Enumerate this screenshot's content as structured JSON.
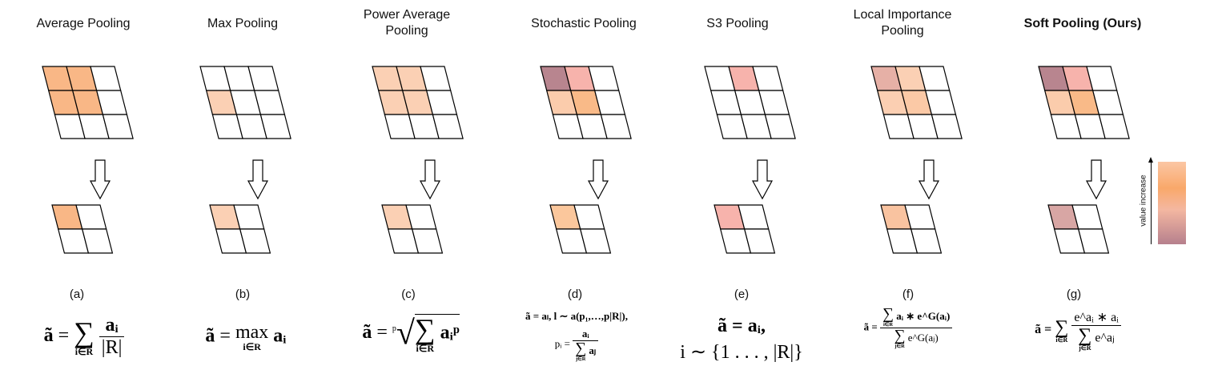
{
  "methods": [
    {
      "title": "Average Pooling",
      "label": "(a)",
      "bold": false,
      "cells": [
        "#f9b786",
        "#f9b786",
        null,
        "#f9b786",
        "#f9b786",
        null,
        null,
        null,
        null
      ],
      "out": "#f9b786"
    },
    {
      "title": "Max Pooling",
      "label": "(b)",
      "bold": false,
      "cells": [
        null,
        null,
        null,
        "#fbd0b4",
        null,
        null,
        null,
        null,
        null
      ],
      "out": "#fbd0b4"
    },
    {
      "title": "Power Average Pooling",
      "label": "(c)",
      "bold": false,
      "cells": [
        "#fbd0b4",
        "#fbd0b4",
        null,
        "#fbd0b4",
        "#fbd0b4",
        null,
        null,
        null,
        null
      ],
      "out": "#fbd0b4"
    },
    {
      "title": "Stochastic Pooling",
      "label": "(d)",
      "bold": false,
      "cells": [
        "#b8858f",
        "#f7b3ac",
        null,
        "#fbccac",
        "#f9ba88",
        null,
        null,
        null,
        null
      ],
      "out": "#fbc79c"
    },
    {
      "title": "S3 Pooling",
      "label": "(e)",
      "bold": false,
      "cells": [
        null,
        "#f7b3ac",
        null,
        null,
        null,
        null,
        null,
        null,
        null
      ],
      "out": "#f7b3ac"
    },
    {
      "title": "Local Importance Pooling",
      "label": "(f)",
      "bold": false,
      "cells": [
        "#e6b0a6",
        "#fbd0b4",
        null,
        "#fbcfb2",
        "#fbc9a6",
        null,
        null,
        null,
        null
      ],
      "out": "#f9c3a0"
    },
    {
      "title": "Soft Pooling (Ours)",
      "label": "(g)",
      "bold": true,
      "cells": [
        "#b8858f",
        "#f7b3ac",
        null,
        "#fbccac",
        "#f9ba88",
        null,
        null,
        null,
        null
      ],
      "out": "#d8a6a4"
    }
  ],
  "formulas": {
    "a": {
      "lhs": "ã",
      "eq": "=",
      "sum": "∑",
      "sub": "i∈R",
      "num": "aᵢ",
      "den": "|R|"
    },
    "b": {
      "lhs": "ã",
      "eq": "=",
      "op": "max",
      "sub": "i∈R",
      "rhs": "aᵢ"
    },
    "c": {
      "lhs": "ã",
      "eq": "=",
      "root": "p",
      "sum": "∑",
      "sub": "i∈R",
      "rhs": "aᵢᵖ"
    },
    "d": {
      "line1": "ã = aₗ,  l ∼ a(p₁,…,p|R|),",
      "pi": "pᵢ =",
      "num": "aᵢ",
      "den_sum": "∑",
      "den_sub": "j∈R",
      "den": "aⱼ"
    },
    "e": {
      "line1": "ã = aᵢ,",
      "line2": "i ∼ {1 . . . , |R|}"
    },
    "f": {
      "lhs": "ã =",
      "num_sum": "∑",
      "num_sub": "i∈R",
      "num": "aᵢ ∗ e^G(aᵢ)",
      "den_sum": "∑",
      "den_sub": "j∈R",
      "den": "e^G(aⱼ)"
    },
    "g": {
      "lhs": "ã =",
      "sum": "∑",
      "sub": "i∈R",
      "num": "e^aᵢ ∗ aᵢ",
      "den_sum": "∑",
      "den_sub": "j∈R",
      "den": "e^aⱼ"
    }
  },
  "colorbar": {
    "label": "value increase",
    "colors": [
      "#fbc6a4",
      "#f9a86a",
      "#f4b7a1",
      "#b6808d"
    ]
  }
}
